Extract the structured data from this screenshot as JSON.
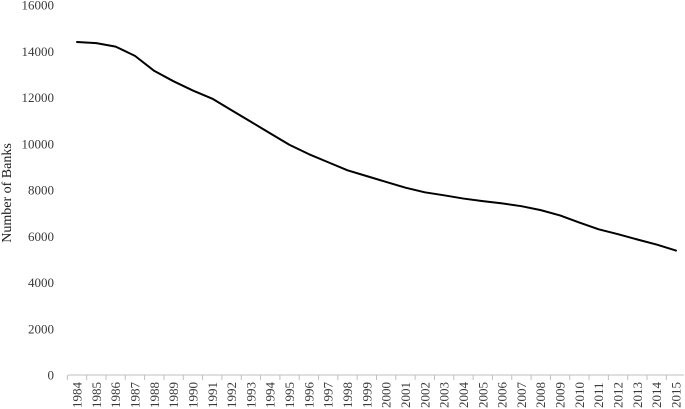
{
  "chart_data": {
    "type": "line",
    "title": "",
    "xlabel": "",
    "ylabel": "Number of Banks",
    "ylim": [
      0,
      16000
    ],
    "yticks": [
      0,
      2000,
      4000,
      6000,
      8000,
      10000,
      12000,
      14000,
      16000
    ],
    "grid": false,
    "legend": "none",
    "line_color": "#000000",
    "x": [
      "1984",
      "1985",
      "1986",
      "1987",
      "1988",
      "1989",
      "1990",
      "1991",
      "1992",
      "1993",
      "1994",
      "1995",
      "1996",
      "1997",
      "1998",
      "1999",
      "2000",
      "2001",
      "2002",
      "2003",
      "2004",
      "2005",
      "2006",
      "2007",
      "2008",
      "2009",
      "2010",
      "2011",
      "2012",
      "2013",
      "2014",
      "2015"
    ],
    "series": [
      {
        "values": [
          14400,
          14350,
          14200,
          13800,
          13150,
          12700,
          12300,
          11950,
          11450,
          10950,
          10450,
          9950,
          9550,
          9200,
          8850,
          8600,
          8350,
          8100,
          7900,
          7770,
          7630,
          7520,
          7420,
          7300,
          7130,
          6900,
          6590,
          6300,
          6090,
          5860,
          5640,
          5380
        ]
      }
    ]
  }
}
